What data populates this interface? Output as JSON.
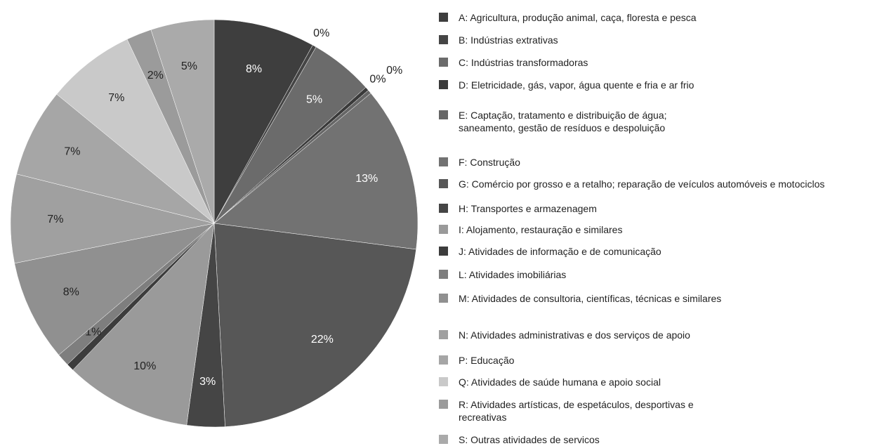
{
  "chart_data": {
    "type": "pie",
    "series": [
      {
        "name": "A: Agricultura, produção animal, caça, floresta e pesca",
        "color": "#3e3e3e"
      },
      {
        "name": "B: Indústrias extrativas",
        "color": "#454545"
      },
      {
        "name": "C: Indústrias transformadoras",
        "color": "#6b6b6b"
      },
      {
        "name": "D: Eletricidade, gás, vapor, água quente e fria e ar frio",
        "color": "#3a3a3a"
      },
      {
        "name": "E: Captação, tratamento e distribuição de água;\nsaneamento, gestão de resíduos e despoluição",
        "color": "#666666"
      },
      {
        "name": "F: Construção",
        "color": "#727272"
      },
      {
        "name": "G: Comércio por grosso e a retalho; reparação de veículos automóveis e motociclos",
        "color": "#575757"
      },
      {
        "name": "H: Transportes e armazenagem",
        "color": "#454545"
      },
      {
        "name": "I: Alojamento, restauração e similares",
        "color": "#9a9a9a"
      },
      {
        "name": "J: Atividades de informação e de comunicação",
        "color": "#3c3c3c"
      },
      {
        "name": "L: Atividades imobiliárias",
        "color": "#7e7e7e"
      },
      {
        "name": "M: Atividades de consultoria, científicas, técnicas e similares",
        "color": "#909090"
      },
      {
        "name": "N: Atividades administrativas e dos serviços de apoio",
        "color": "#a0a0a0"
      },
      {
        "name": "P: Educação",
        "color": "#a6a6a6"
      },
      {
        "name": "Q: Atividades de saúde humana e apoio social",
        "color": "#c9c9c9"
      },
      {
        "name": "R: Atividades artísticas, de espetáculos, desportivas e\nrecreativas",
        "color": "#9b9b9b"
      },
      {
        "name": "S: Outras atividades de servicos",
        "color": "#aaaaaa"
      }
    ],
    "values": [
      8,
      0.3,
      5,
      0.3,
      0.3,
      13,
      22,
      3,
      10,
      0.6,
      1,
      8,
      7,
      7,
      7,
      2,
      5
    ],
    "value_labels": [
      "8%",
      "0%",
      "5%",
      "0%",
      "0%",
      "13%",
      "22%",
      "3%",
      "10%",
      null,
      "1%",
      "8%",
      "7%",
      "7%",
      "7%",
      "2%",
      "5%"
    ]
  }
}
